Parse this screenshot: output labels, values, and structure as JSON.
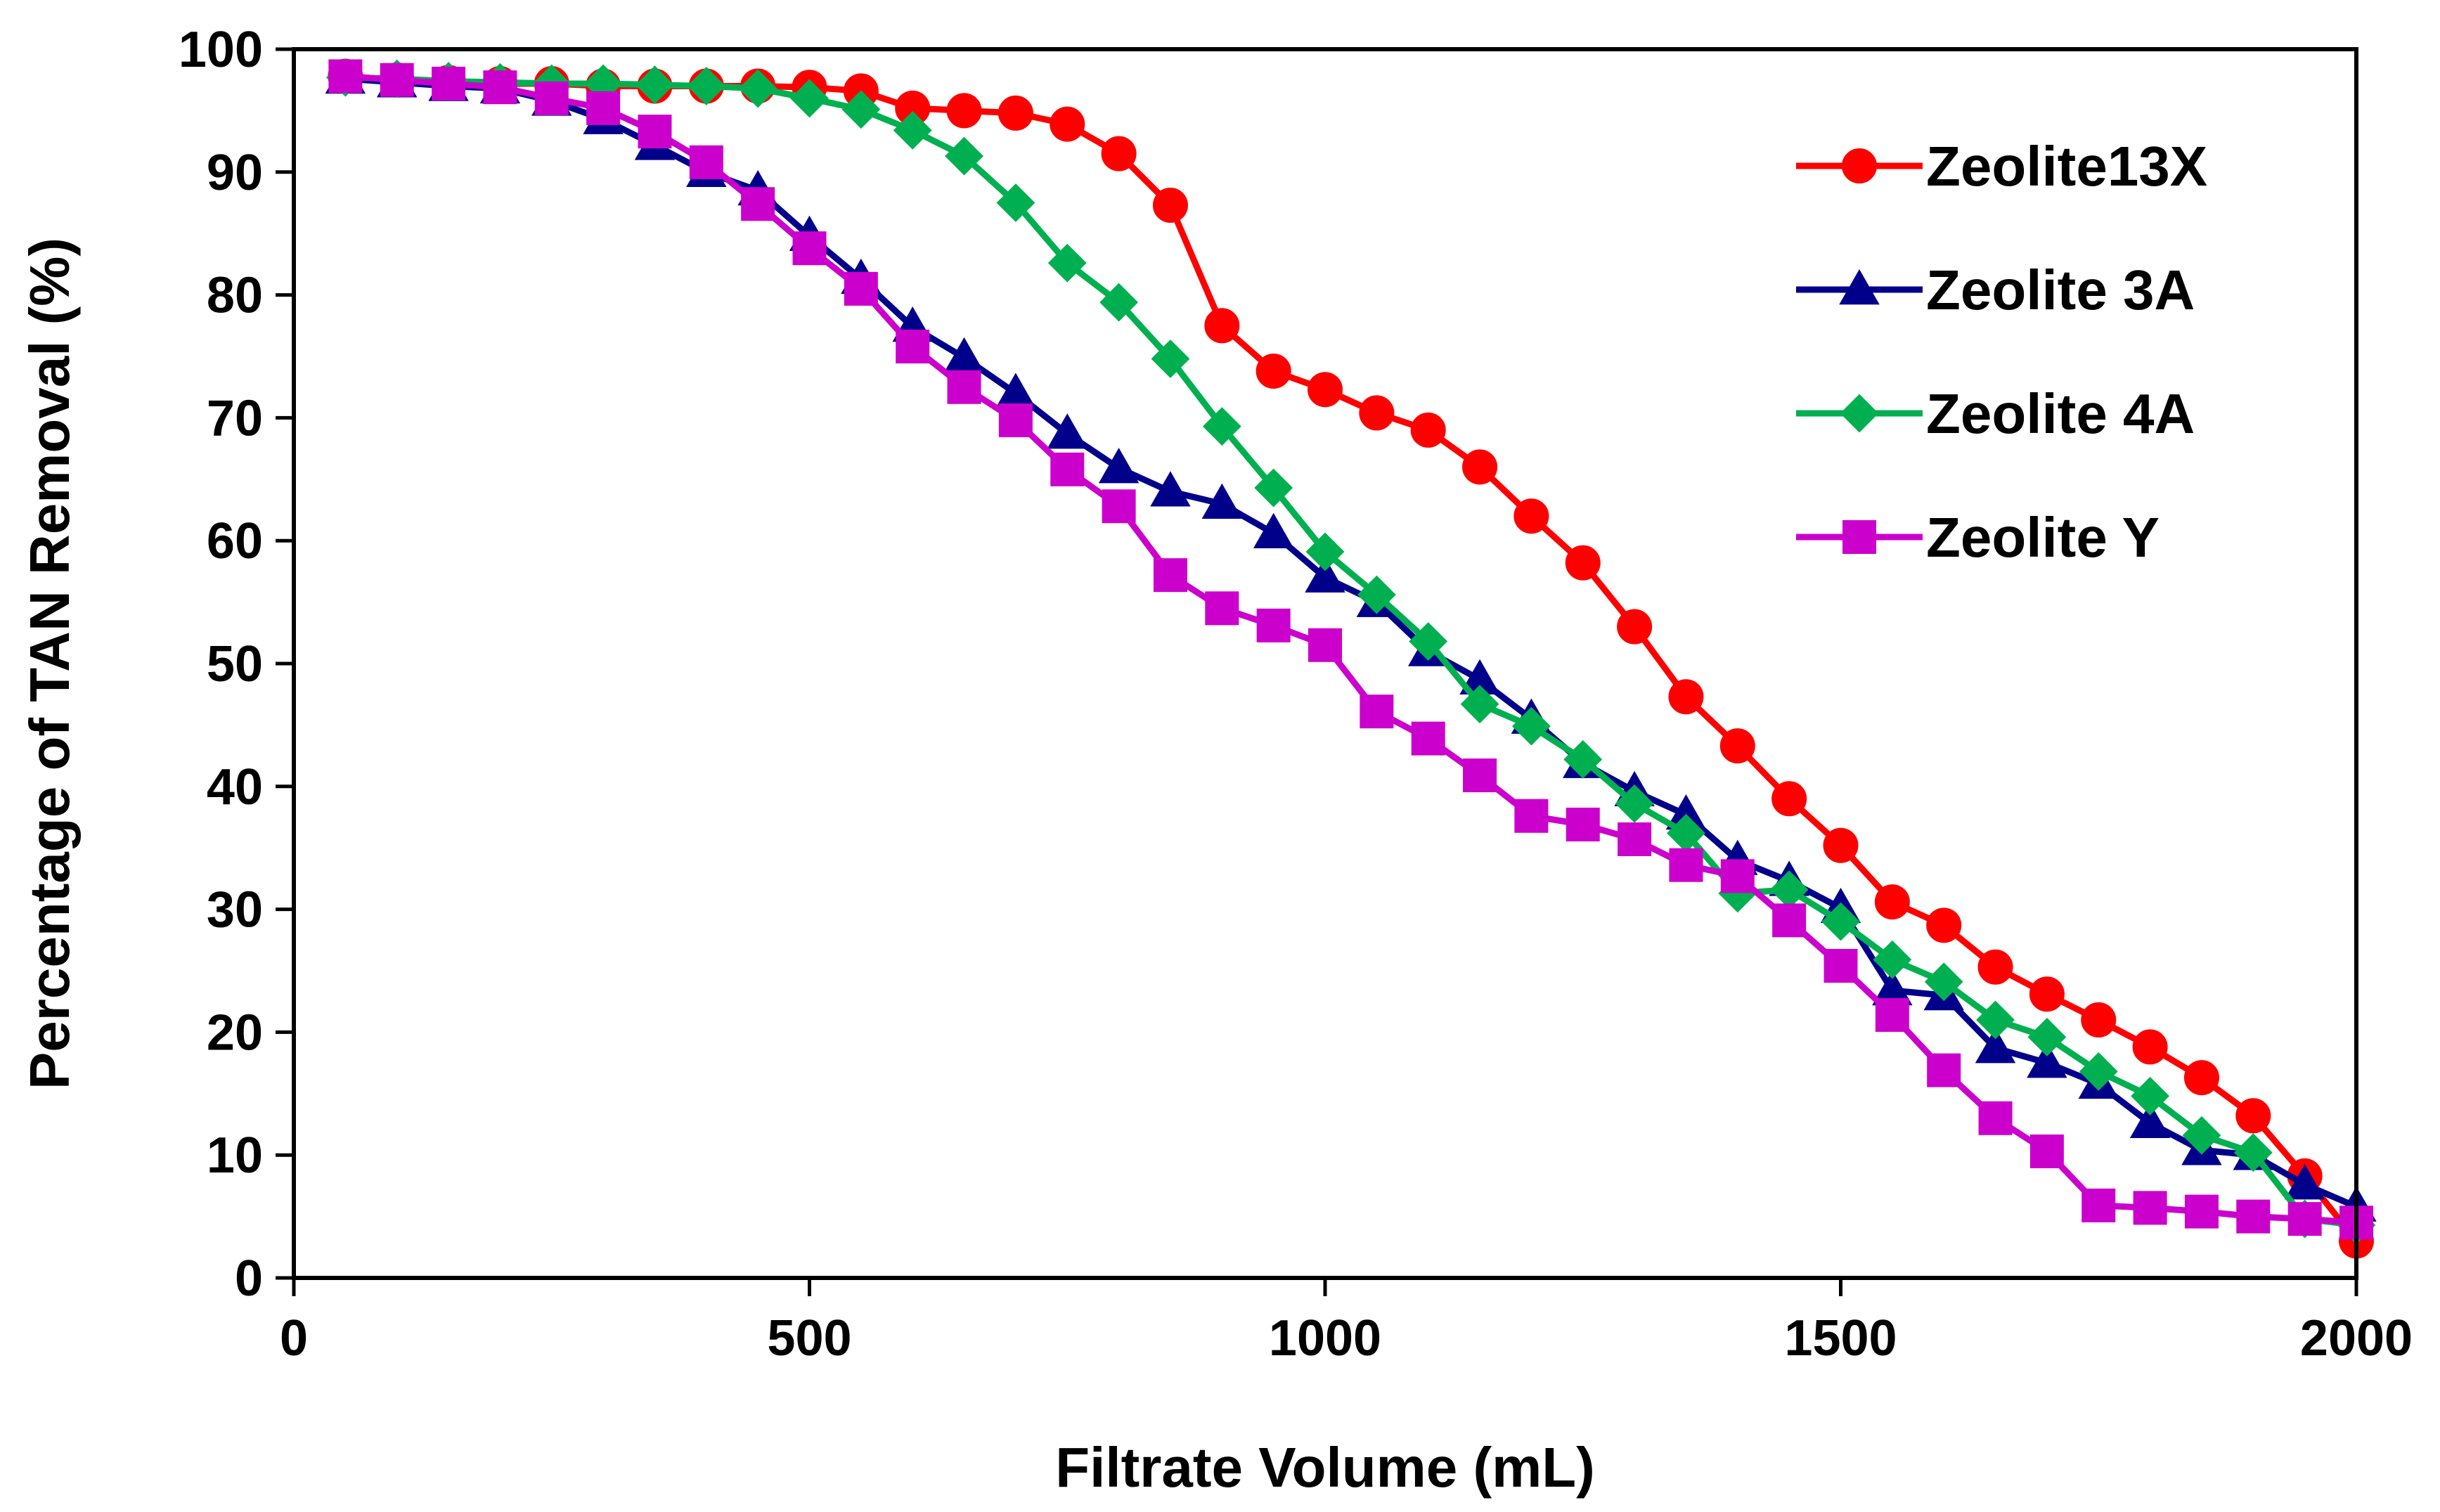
{
  "chart_data": {
    "type": "line",
    "title": "",
    "xlabel": "Filtrate Volume (mL)",
    "ylabel": "Percentage of TAN Removal (%)",
    "xlim": [
      0,
      2000
    ],
    "ylim": [
      0,
      100
    ],
    "xticks": [
      0,
      500,
      1000,
      1500,
      2000
    ],
    "yticks": [
      0,
      10,
      20,
      30,
      40,
      50,
      60,
      70,
      80,
      90,
      100
    ],
    "x_tick_labels": [
      "0",
      "500",
      "1000",
      "1500",
      "2000"
    ],
    "y_tick_labels": [
      "0",
      "10",
      "20",
      "30",
      "40",
      "50",
      "60",
      "70",
      "80",
      "90",
      "100"
    ],
    "grid": false,
    "legend_position": "top-right",
    "x": [
      50,
      100,
      150,
      200,
      250,
      300,
      350,
      400,
      450,
      500,
      550,
      600,
      650,
      700,
      750,
      800,
      850,
      900,
      950,
      1000,
      1050,
      1100,
      1150,
      1200,
      1250,
      1300,
      1350,
      1400,
      1450,
      1500,
      1550,
      1600,
      1650,
      1700,
      1750,
      1800,
      1850,
      1900,
      1950,
      2000
    ],
    "series": [
      {
        "name": "Zeolite13X",
        "color": "#ff0000",
        "marker": "circle",
        "values": [
          97.8,
          97.5,
          97.3,
          97.2,
          97.2,
          97.0,
          97.0,
          97.0,
          97.0,
          96.9,
          96.6,
          95.2,
          95.0,
          94.8,
          93.9,
          91.5,
          87.3,
          77.5,
          73.8,
          72.3,
          70.4,
          69.0,
          66.0,
          62.0,
          58.2,
          53.0,
          47.3,
          43.3,
          39.0,
          35.2,
          30.6,
          28.7,
          25.3,
          23.1,
          21.0,
          18.8,
          16.3,
          13.2,
          8.3,
          3.0
        ]
      },
      {
        "name": "Zeolite 3A",
        "color": "#00008b",
        "marker": "triangle",
        "values": [
          97.6,
          97.3,
          97.0,
          96.8,
          95.8,
          94.3,
          92.2,
          90.0,
          88.5,
          84.8,
          81.3,
          77.4,
          74.9,
          72.0,
          68.7,
          65.9,
          64.0,
          63.0,
          60.6,
          57.0,
          55.0,
          51.0,
          48.7,
          45.5,
          41.9,
          39.6,
          37.7,
          34.0,
          32.3,
          30.1,
          23.4,
          23.0,
          18.7,
          17.5,
          15.8,
          12.6,
          10.4,
          10.0,
          7.6,
          5.8
        ]
      },
      {
        "name": "Zeolite 4A",
        "color": "#00b050",
        "marker": "diamond",
        "values": [
          97.7,
          97.6,
          97.4,
          97.3,
          97.2,
          97.2,
          97.1,
          97.0,
          96.8,
          96.0,
          95.1,
          93.4,
          91.3,
          87.5,
          82.6,
          79.4,
          74.8,
          69.3,
          64.3,
          59.1,
          55.6,
          51.8,
          46.7,
          44.9,
          42.2,
          38.6,
          36.2,
          31.3,
          31.6,
          29.0,
          25.9,
          24.1,
          21.0,
          19.6,
          16.8,
          14.8,
          11.6,
          10.2,
          4.8,
          4.3
        ]
      },
      {
        "name": "Zeolite Y",
        "color": "#cc00cc",
        "marker": "square",
        "values": [
          97.8,
          97.5,
          97.2,
          96.9,
          96.0,
          95.2,
          93.3,
          90.8,
          87.4,
          83.8,
          80.5,
          75.8,
          72.5,
          69.8,
          65.8,
          62.8,
          57.2,
          54.5,
          53.1,
          51.5,
          46.1,
          43.9,
          40.9,
          37.6,
          36.9,
          35.7,
          33.6,
          32.7,
          29.1,
          25.4,
          21.4,
          16.9,
          13.0,
          10.3,
          5.9,
          5.7,
          5.4,
          5.0,
          4.8,
          4.5
        ]
      }
    ]
  }
}
